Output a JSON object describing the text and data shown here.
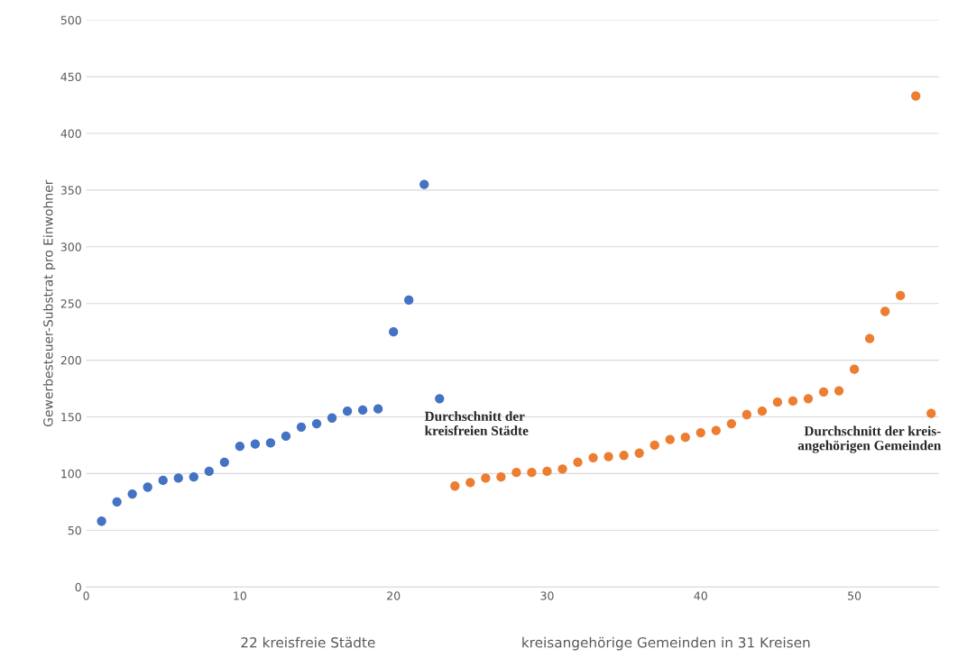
{
  "chart_data": {
    "type": "scatter",
    "ylabel": "Gewerbesteuer-Substrat pro Einwohner",
    "xlim": [
      0,
      55.5
    ],
    "xticks": [
      0,
      10,
      20,
      30,
      40,
      50
    ],
    "ylim": [
      0,
      500
    ],
    "yticks": [
      0,
      50,
      100,
      150,
      200,
      250,
      300,
      350,
      400,
      450,
      500
    ],
    "grid": "y",
    "marker": "circle",
    "legend": false,
    "series": [
      {
        "color": "#4472c4",
        "x": [
          1,
          2,
          3,
          4,
          5,
          6,
          7,
          8,
          9,
          10,
          11,
          12,
          13,
          14,
          15,
          16,
          17,
          18,
          19,
          20,
          21,
          22,
          23
        ],
        "values": [
          58,
          75,
          82,
          88,
          94,
          96,
          97,
          102,
          110,
          124,
          126,
          127,
          133,
          141,
          144,
          149,
          155,
          156,
          157,
          225,
          253,
          355,
          166
        ]
      },
      {
        "color": "#ed7d31",
        "x": [
          24,
          25,
          26,
          27,
          28,
          29,
          30,
          31,
          32,
          33,
          34,
          35,
          36,
          37,
          38,
          39,
          40,
          41,
          42,
          43,
          44,
          45,
          46,
          47,
          48,
          49,
          50,
          51,
          52,
          53,
          54,
          55
        ],
        "values": [
          89,
          92,
          96,
          97,
          101,
          101,
          102,
          104,
          110,
          114,
          115,
          116,
          118,
          125,
          130,
          132,
          136,
          138,
          144,
          152,
          155,
          163,
          164,
          166,
          172,
          173,
          192,
          219,
          243,
          257,
          433,
          153
        ]
      }
    ],
    "annotations": [
      {
        "text": "Durchschnitt der\nkreisfreien Städte",
        "x": 23,
        "y": 166
      },
      {
        "text": "Durchschnitt der kreis-\nangehörigen Gemeinden",
        "x": 55,
        "y": 153
      },
      "22 kreisfreie Städte",
      "kreisangehörige Gemeinden in 31 Kreisen"
    ]
  }
}
